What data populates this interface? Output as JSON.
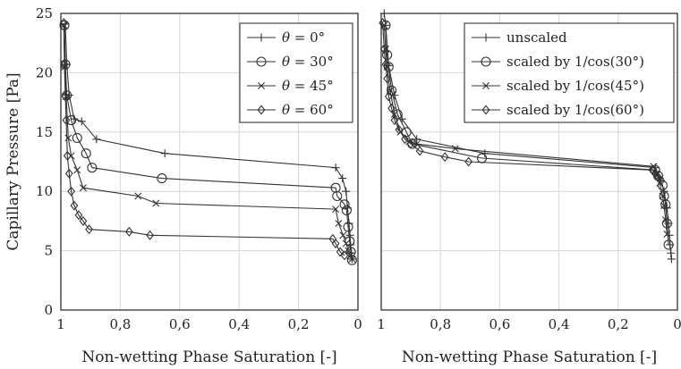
{
  "figure": {
    "ylabel": "Capillary Pressure [Pa]"
  },
  "chart_data": [
    {
      "type": "line",
      "xlabel": "Non-wetting Phase Saturation [-]",
      "ylabel": "Capillary Pressure [Pa]",
      "xlim": [
        1,
        0
      ],
      "ylim": [
        0,
        25
      ],
      "x_reversed": true,
      "xticks": [
        "1",
        "0,8",
        "0,6",
        "0,4",
        "0,2",
        "0"
      ],
      "xtick_values": [
        1,
        0.8,
        0.6,
        0.4,
        0.2,
        0
      ],
      "yticks": [
        "0",
        "5",
        "10",
        "15",
        "20",
        "25"
      ],
      "ytick_values": [
        0,
        5,
        10,
        15,
        20,
        25
      ],
      "grid": true,
      "legend_position": "top-right",
      "series": [
        {
          "name": "θ = 0°",
          "marker": "plus",
          "x": [
            0.985,
            0.98,
            0.972,
            0.955,
            0.93,
            0.88,
            0.65,
            0.075,
            0.052,
            0.04,
            0.035,
            0.03,
            0.027,
            0.025,
            0.022,
            0.02
          ],
          "y": [
            24.1,
            20.7,
            18.1,
            16.1,
            15.9,
            14.4,
            13.2,
            12.0,
            11.1,
            10.0,
            8.6,
            7.3,
            6.3,
            5.5,
            4.8,
            4.3
          ]
        },
        {
          "name": "θ = 30°",
          "marker": "circle",
          "x": [
            0.988,
            0.985,
            0.98,
            0.965,
            0.945,
            0.915,
            0.895,
            0.66,
            0.075,
            0.07,
            0.045,
            0.038,
            0.033,
            0.028,
            0.024,
            0.02
          ],
          "y": [
            24.0,
            20.7,
            18.1,
            16.0,
            14.5,
            13.2,
            12.0,
            11.1,
            10.3,
            9.6,
            8.9,
            8.4,
            7.0,
            5.8,
            4.9,
            4.2
          ]
        },
        {
          "name": "θ = 45°",
          "marker": "cross",
          "x": [
            0.99,
            0.987,
            0.982,
            0.975,
            0.965,
            0.945,
            0.925,
            0.74,
            0.68,
            0.075,
            0.065,
            0.05,
            0.04,
            0.032,
            0.026,
            0.02
          ],
          "y": [
            24.0,
            20.5,
            18.0,
            14.5,
            13.0,
            11.8,
            10.3,
            9.6,
            9.0,
            8.5,
            7.3,
            6.3,
            5.6,
            5.0,
            4.6,
            4.3
          ]
        },
        {
          "name": "θ = 60°",
          "marker": "diamond",
          "x": [
            0.99,
            0.988,
            0.985,
            0.982,
            0.978,
            0.972,
            0.965,
            0.955,
            0.94,
            0.925,
            0.905,
            0.77,
            0.7,
            0.085,
            0.075,
            0.06,
            0.045
          ],
          "y": [
            24.2,
            20.7,
            18.0,
            16.0,
            13.0,
            11.5,
            10.0,
            8.8,
            8.0,
            7.5,
            6.8,
            6.6,
            6.3,
            6.0,
            5.6,
            4.9,
            4.6
          ]
        }
      ]
    },
    {
      "type": "line",
      "xlabel": "Non-wetting Phase Saturation [-]",
      "ylabel": "",
      "xlim": [
        1,
        0
      ],
      "ylim": [
        0,
        25
      ],
      "x_reversed": true,
      "xticks": [
        "1",
        "0,8",
        "0,6",
        "0,4",
        "0,2",
        "0"
      ],
      "xtick_values": [
        1,
        0.8,
        0.6,
        0.4,
        0.2,
        0
      ],
      "yticks": [],
      "ytick_values": [
        0,
        5,
        10,
        15,
        20,
        25
      ],
      "grid": true,
      "legend_position": "top-right",
      "series": [
        {
          "name": "unscaled",
          "marker": "plus",
          "x": [
            0.99,
            0.985,
            0.975,
            0.955,
            0.93,
            0.88,
            0.65,
            0.075,
            0.06,
            0.045,
            0.035,
            0.03,
            0.027,
            0.025,
            0.022,
            0.02
          ],
          "y": [
            25.0,
            24.0,
            20.6,
            18.1,
            16.1,
            14.4,
            13.2,
            12.0,
            11.1,
            10.0,
            8.6,
            7.3,
            6.3,
            5.5,
            4.8,
            4.3
          ]
        },
        {
          "name": "scaled by 1/cos(30°)",
          "marker": "circle",
          "x": [
            0.985,
            0.98,
            0.975,
            0.965,
            0.945,
            0.915,
            0.895,
            0.66,
            0.075,
            0.065,
            0.05,
            0.045,
            0.04,
            0.035,
            0.03
          ],
          "y": [
            24.0,
            21.5,
            20.5,
            18.5,
            16.5,
            15.0,
            14.0,
            12.8,
            11.8,
            11.3,
            10.5,
            9.6,
            8.9,
            7.3,
            5.5
          ]
        },
        {
          "name": "scaled by 1/cos(45°)",
          "marker": "cross",
          "x": [
            0.99,
            0.985,
            0.98,
            0.97,
            0.955,
            0.935,
            0.905,
            0.88,
            0.75,
            0.08,
            0.07,
            0.06,
            0.05,
            0.045,
            0.04,
            0.035
          ],
          "y": [
            24.0,
            22.0,
            20.5,
            18.5,
            16.5,
            15.0,
            14.2,
            14.0,
            13.6,
            12.1,
            11.5,
            10.7,
            9.6,
            8.8,
            7.6,
            6.4
          ]
        },
        {
          "name": "scaled by 1/cos(60°)",
          "marker": "diamond",
          "x": [
            0.995,
            0.99,
            0.985,
            0.98,
            0.975,
            0.965,
            0.955,
            0.94,
            0.92,
            0.9,
            0.87,
            0.785,
            0.705,
            0.085,
            0.075,
            0.065,
            0.055
          ],
          "y": [
            24.2,
            22.0,
            20.7,
            19.5,
            18.0,
            17.0,
            16.0,
            15.2,
            14.4,
            14.0,
            13.4,
            12.9,
            12.5,
            11.8,
            11.5,
            11.2,
            10.9
          ]
        }
      ]
    }
  ]
}
